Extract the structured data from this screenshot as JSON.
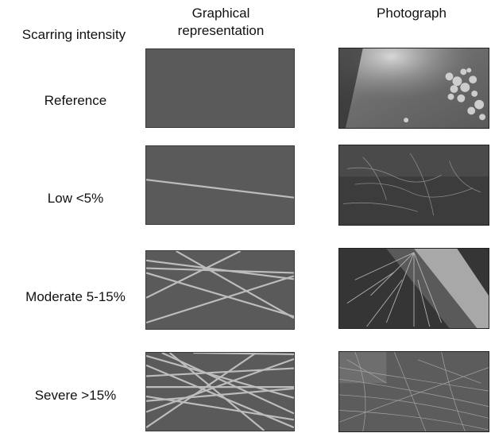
{
  "headers": {
    "scarring_intensity": "Scarring intensity",
    "graphical_line1": "Graphical",
    "graphical_line2": "representation",
    "photograph": "Photograph"
  },
  "rows": [
    {
      "label": "Reference"
    },
    {
      "label": "Low <5%"
    },
    {
      "label": "Moderate 5-15%"
    },
    {
      "label": "Severe >15%"
    }
  ],
  "colors": {
    "panel_fill": "#5a5a5a",
    "scar_line": "#bdbdbd"
  }
}
